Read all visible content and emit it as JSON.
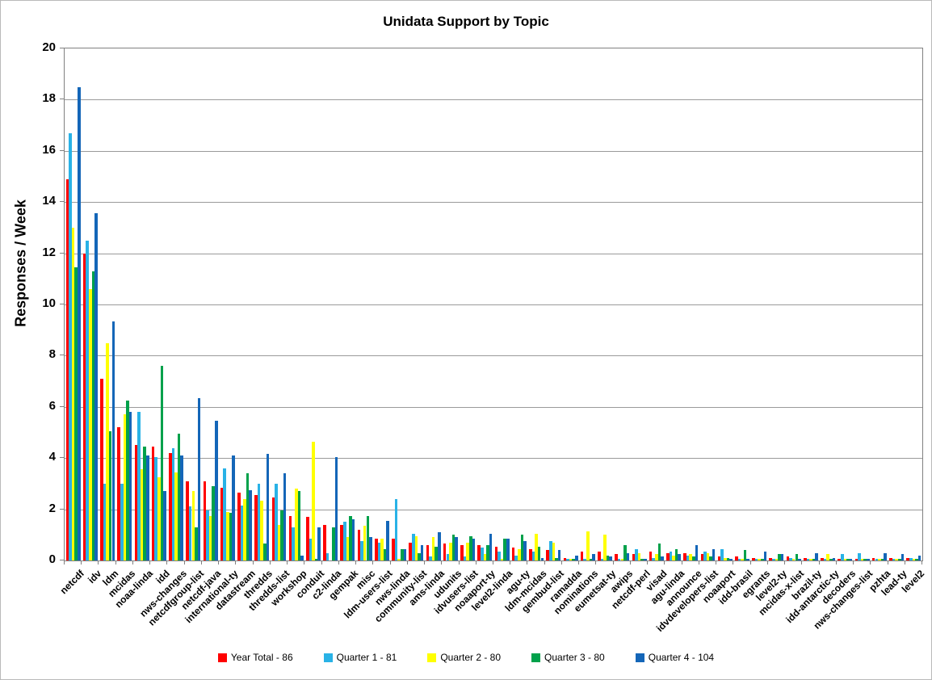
{
  "title": "Unidata Support by Topic",
  "y_axis": {
    "label": "Responses / Week",
    "min": 0,
    "max": 20,
    "step": 2
  },
  "legend": {
    "items": [
      "Year Total  - 86",
      "Quarter 1 - 81",
      "Quarter 2 - 80",
      "Quarter 3 - 80",
      "Quarter 4 - 104"
    ]
  },
  "colors": {
    "year_total": "#FF0000",
    "quarter1": "#29B2E6",
    "quarter2": "#FFFF00",
    "quarter3": "#00A14B",
    "quarter4": "#1466B8",
    "grid": "#9A9A9A",
    "axis": "#808080"
  },
  "chart_data": {
    "type": "bar",
    "title": "Unidata Support by Topic",
    "xlabel": "",
    "ylabel": "Responses / Week",
    "ylim": [
      0,
      20
    ],
    "ytick_step": 2,
    "grid": true,
    "legend_position": "bottom",
    "categories": [
      "netcdf",
      "idv",
      "ldm",
      "mcidas",
      "noaa-linda",
      "idd",
      "nws-changes",
      "netcdfgroup-list",
      "netcdf-java",
      "international-ty",
      "datastream",
      "thredds",
      "thredds-list",
      "workshop",
      "conduit",
      "c2-linda",
      "gempak",
      "misc",
      "ldm-users-list",
      "nws-linda",
      "community-list",
      "ams-linda",
      "udunits",
      "idvusers-list",
      "noaaport-ty",
      "level2-linda",
      "agu-ty",
      "ldm-mcidas",
      "gembud-list",
      "ramadda",
      "nominations",
      "eumetsat-ty",
      "awips",
      "netcdf-perl",
      "visad",
      "agu-linda",
      "announce",
      "idvdevelopers-list",
      "noaaport",
      "idd-brasil",
      "egrants",
      "level2-ty",
      "mcidas-x-list",
      "brazil-ty",
      "idd-antarctic-ty",
      "decoders",
      "nws-changes-list",
      "pzhta",
      "lead-ty",
      "level2"
    ],
    "series": [
      {
        "name": "Year Total  - 86",
        "color": "#FF0000",
        "values": [
          14.9,
          12.0,
          7.1,
          5.2,
          4.5,
          4.45,
          4.2,
          3.1,
          3.1,
          2.85,
          2.65,
          2.55,
          2.45,
          1.75,
          1.7,
          1.4,
          1.4,
          1.2,
          0.85,
          0.85,
          0.7,
          0.6,
          0.65,
          0.6,
          0.6,
          0.55,
          0.5,
          0.45,
          0.4,
          0.1,
          0.35,
          0.35,
          0.25,
          0.25,
          0.35,
          0.3,
          0.3,
          0.25,
          0.15,
          0.15,
          0.1,
          0.1,
          0.15,
          0.1,
          0.1,
          0.05,
          0.05,
          0.1,
          0.1,
          0.1
        ]
      },
      {
        "name": "Quarter 1 - 81",
        "color": "#29B2E6",
        "values": [
          16.7,
          12.5,
          3.0,
          3.0,
          5.8,
          4.05,
          4.4,
          2.1,
          1.95,
          3.6,
          2.15,
          3.0,
          3.0,
          1.3,
          0.85,
          0.3,
          1.5,
          0.75,
          0.7,
          2.4,
          1.05,
          0.15,
          0.25,
          0.15,
          0.5,
          0.35,
          0.2,
          0.35,
          0.75,
          0.05,
          0.05,
          0.05,
          0.05,
          0.45,
          0.1,
          0.35,
          0.2,
          0.35,
          0.45,
          0.05,
          0.05,
          0.05,
          0.1,
          0.05,
          0.05,
          0.25,
          0.3,
          0.05,
          0.05,
          0.1
        ]
      },
      {
        "name": "Quarter 2 - 80",
        "color": "#FFFF00",
        "values": [
          13.0,
          10.6,
          8.5,
          5.7,
          3.55,
          3.25,
          3.45,
          2.7,
          1.75,
          1.9,
          2.4,
          2.35,
          1.4,
          2.8,
          4.65,
          0.0,
          0.9,
          1.35,
          0.85,
          0.05,
          0.95,
          0.9,
          0.7,
          0.7,
          0.25,
          0.05,
          0.45,
          1.05,
          0.7,
          0.05,
          1.15,
          1.0,
          0.05,
          0.3,
          0.25,
          0.2,
          0.25,
          0.3,
          0.1,
          0.05,
          0.05,
          0.05,
          0.05,
          0.05,
          0.25,
          0.05,
          0.05,
          0.05,
          0.05,
          0.05
        ]
      },
      {
        "name": "Quarter 3 - 80",
        "color": "#00A14B",
        "values": [
          11.45,
          11.3,
          5.05,
          6.25,
          4.45,
          7.6,
          4.95,
          1.3,
          2.9,
          1.85,
          3.4,
          0.65,
          1.95,
          2.7,
          0.05,
          1.3,
          1.75,
          1.75,
          0.45,
          0.45,
          0.3,
          0.55,
          1.0,
          0.95,
          0.6,
          0.85,
          1.0,
          0.55,
          0.1,
          0.05,
          0.05,
          0.2,
          0.6,
          0.05,
          0.65,
          0.45,
          0.15,
          0.15,
          0.1,
          0.4,
          0.05,
          0.25,
          0.25,
          0.05,
          0.05,
          0.05,
          0.05,
          0.05,
          0.05,
          0.05
        ]
      },
      {
        "name": "Quarter 4 - 104",
        "color": "#1466B8",
        "values": [
          18.5,
          13.55,
          9.35,
          5.8,
          4.1,
          2.7,
          4.1,
          6.35,
          5.45,
          4.1,
          2.75,
          4.15,
          3.4,
          0.2,
          1.3,
          4.05,
          1.6,
          0.9,
          1.55,
          0.45,
          0.6,
          1.1,
          0.9,
          0.85,
          1.05,
          0.85,
          0.75,
          0.1,
          0.4,
          0.2,
          0.25,
          0.15,
          0.3,
          0.05,
          0.15,
          0.25,
          0.6,
          0.45,
          0.05,
          0.05,
          0.35,
          0.25,
          0.05,
          0.3,
          0.1,
          0.05,
          0.05,
          0.3,
          0.25,
          0.2
        ]
      }
    ]
  }
}
